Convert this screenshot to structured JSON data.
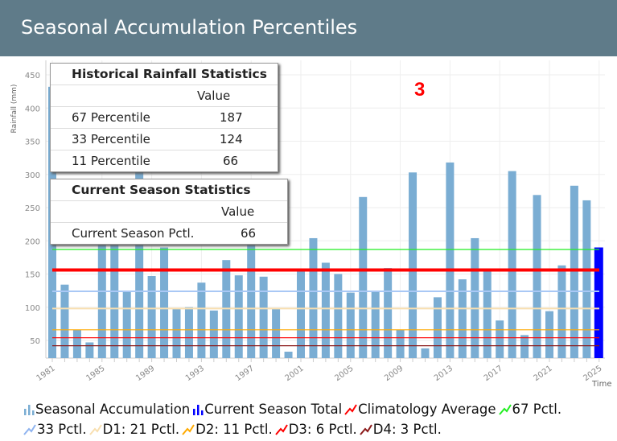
{
  "header": {
    "title": "Seasonal Accumulation Percentiles"
  },
  "annotation": "3",
  "historical_table": {
    "title": "Historical Rainfall Statistics",
    "value_header": "Value",
    "rows": [
      {
        "label": "67 Percentile",
        "value": "187"
      },
      {
        "label": "33 Percentile",
        "value": "124"
      },
      {
        "label": "11 Percentile",
        "value": "66"
      }
    ]
  },
  "current_table": {
    "title": "Current Season Statistics",
    "value_header": "Value",
    "rows": [
      {
        "label": "Current Season Pctl.",
        "value": "66"
      }
    ]
  },
  "chart_data": {
    "type": "bar",
    "ylabel": "Rainfall (mm)",
    "xlabel": "Time",
    "ylim": [
      23,
      460
    ],
    "yticks": [
      50,
      100,
      150,
      200,
      250,
      300,
      350,
      400,
      450
    ],
    "xticks": [
      "1981",
      "1985",
      "1989",
      "1993",
      "1997",
      "2001",
      "2005",
      "2009",
      "2013",
      "2017",
      "2021",
      "2025"
    ],
    "grid": true,
    "legend_position": "bottom",
    "categories": [
      1981,
      1982,
      1983,
      1984,
      1985,
      1986,
      1987,
      1988,
      1989,
      1990,
      1991,
      1992,
      1993,
      1994,
      1995,
      1996,
      1997,
      1998,
      1999,
      2000,
      2001,
      2002,
      2003,
      2004,
      2005,
      2006,
      2007,
      2008,
      2009,
      2010,
      2011,
      2012,
      2013,
      2014,
      2015,
      2016,
      2017,
      2018,
      2019,
      2020,
      2021,
      2022,
      2023,
      2024,
      2025
    ],
    "series": [
      {
        "name": "Seasonal Accumulation",
        "color": "#7aadd3",
        "values": [
          432,
          134,
          66,
          47,
          222,
          210,
          125,
          383,
          147,
          190,
          98,
          100,
          137,
          95,
          171,
          148,
          240,
          146,
          98,
          33,
          155,
          204,
          167,
          150,
          122,
          266,
          123,
          159,
          66,
          303,
          38,
          115,
          318,
          142,
          204,
          155,
          80,
          305,
          58,
          269,
          94,
          163,
          283,
          261,
          null
        ]
      },
      {
        "name": "Current Season Total",
        "color": "#0000ff",
        "values": [
          null,
          null,
          null,
          null,
          null,
          null,
          null,
          null,
          null,
          null,
          null,
          null,
          null,
          null,
          null,
          null,
          null,
          null,
          null,
          null,
          null,
          null,
          null,
          null,
          null,
          null,
          null,
          null,
          null,
          null,
          null,
          null,
          null,
          null,
          null,
          null,
          null,
          null,
          null,
          null,
          null,
          null,
          null,
          null,
          190
        ]
      }
    ],
    "reference_lines": [
      {
        "name": "Climatology Average",
        "value": 156,
        "color": "#ff0000",
        "width": 4
      },
      {
        "name": "67 Pctl.",
        "value": 187,
        "color": "#22ee22",
        "width": 1.2
      },
      {
        "name": "33 Pctl.",
        "value": 124,
        "color": "#a9c8f5",
        "width": 2
      },
      {
        "name": "D1: 21 Pctl.",
        "value": 98,
        "color": "#f8dfb0",
        "width": 2
      },
      {
        "name": "D2: 11 Pctl.",
        "value": 66,
        "color": "#ffaa00",
        "width": 1.2
      },
      {
        "name": "D3: 6 Pctl.",
        "value": 54,
        "color": "#ff0000",
        "width": 1.2
      },
      {
        "name": "D4: 3 Pctl.",
        "value": 42,
        "color": "#8b1a1a",
        "width": 1.2
      }
    ]
  },
  "legend": [
    {
      "label": "Seasonal Accumulation",
      "kind": "bar",
      "color": "#7aadd3"
    },
    {
      "label": "Current Season Total",
      "kind": "bar",
      "color": "#0000ff"
    },
    {
      "label": "Climatology Average",
      "kind": "line",
      "color": "#ff0000"
    },
    {
      "label": "67 Pctl.",
      "kind": "line",
      "color": "#22ee22"
    },
    {
      "label": "33 Pctl.",
      "kind": "line",
      "color": "#8fb4f0"
    },
    {
      "label": "D1: 21 Pctl.",
      "kind": "line",
      "color": "#f8dfb0"
    },
    {
      "label": "D2: 11 Pctl.",
      "kind": "line",
      "color": "#ffaa00"
    },
    {
      "label": "D3: 6 Pctl.",
      "kind": "line",
      "color": "#ff0000"
    },
    {
      "label": "D4: 3 Pctl.",
      "kind": "line",
      "color": "#8b1a1a"
    }
  ]
}
